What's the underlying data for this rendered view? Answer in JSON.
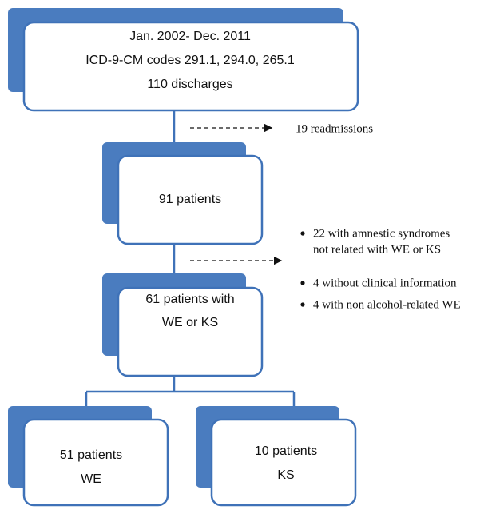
{
  "nodes": [
    {
      "lines": [
        "Jan. 2002- Dec. 2011",
        "ICD-9-CM codes 291.1, 294.0, 265.1",
        "110 discharges"
      ]
    },
    {
      "lines": [
        "91 patients"
      ]
    },
    {
      "lines": [
        "61 patients with",
        "WE or KS"
      ]
    },
    {
      "lines": [
        "51 patients",
        "WE"
      ]
    },
    {
      "lines": [
        "10 patients",
        "KS"
      ]
    }
  ],
  "exclusions": [
    {
      "items": [
        "19 readmissions"
      ]
    },
    {
      "items": [
        "22  with amnestic syndromes",
        "not related with WE or KS",
        "4 without clinical information",
        "4 with non alcohol-related WE"
      ]
    }
  ]
}
